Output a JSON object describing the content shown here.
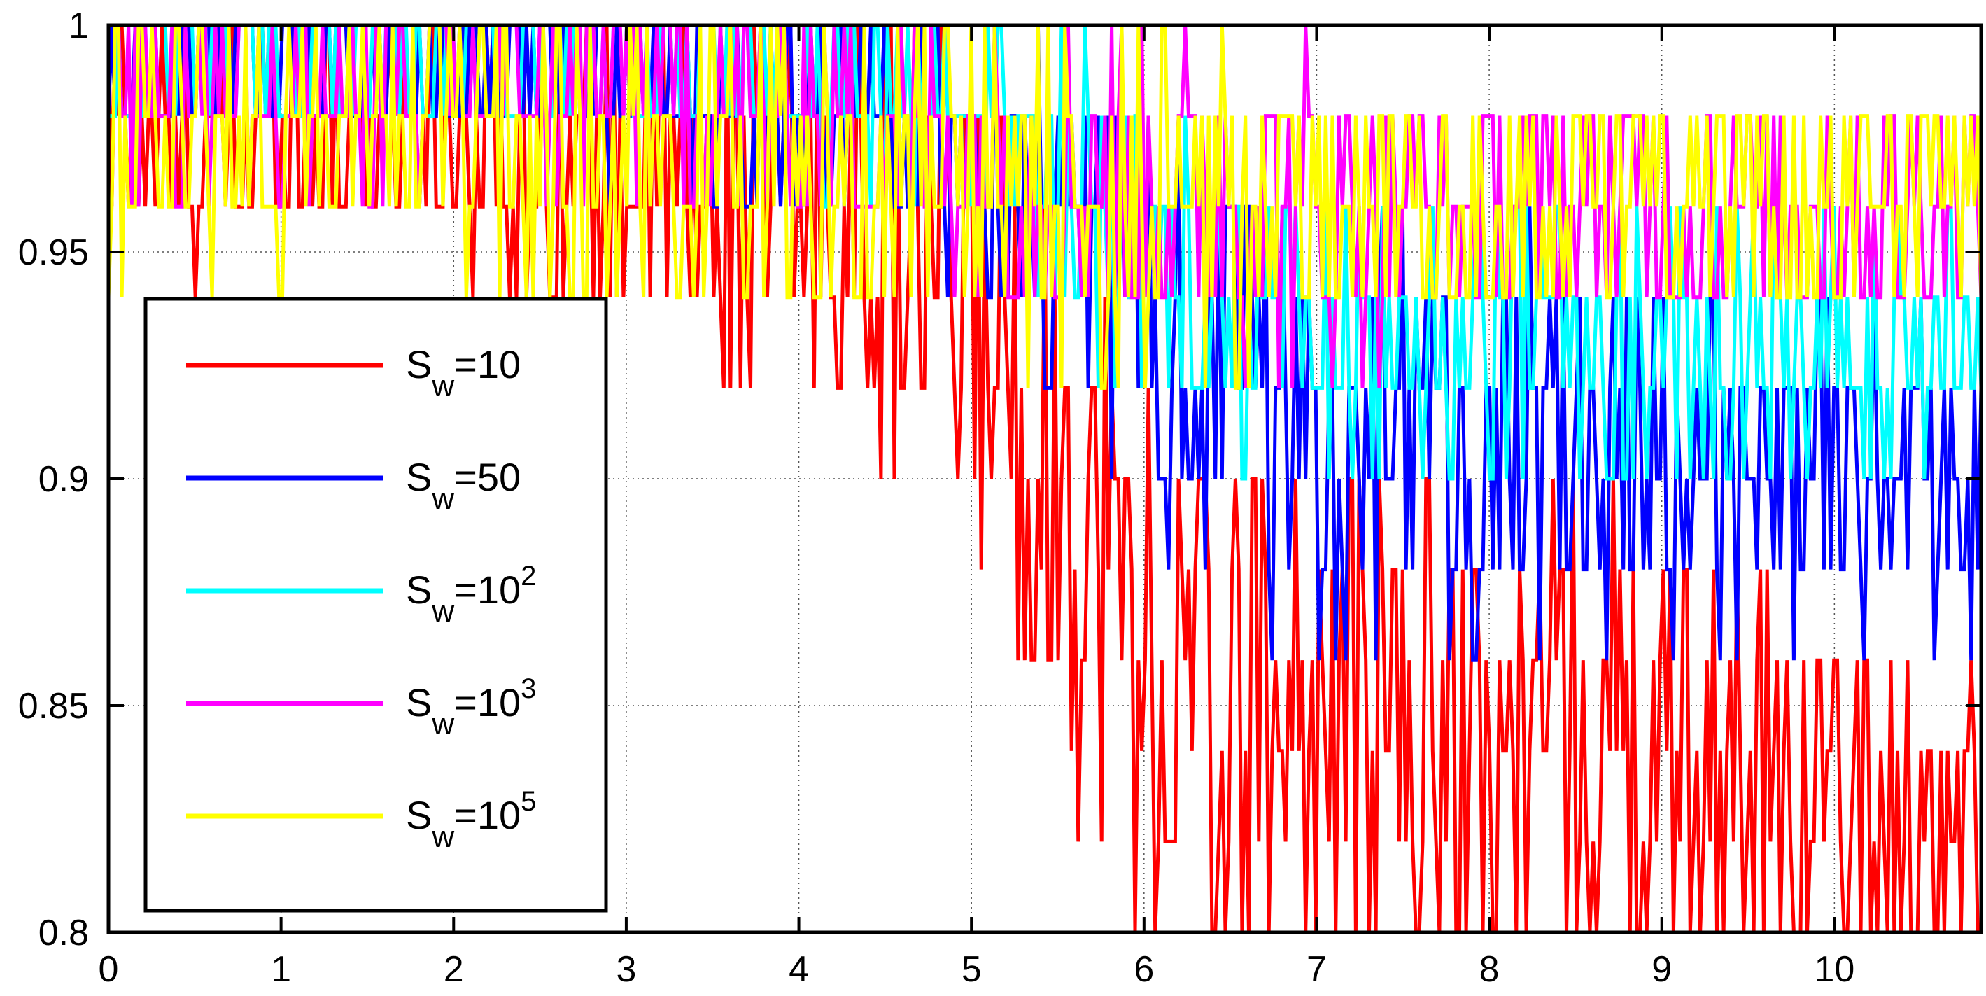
{
  "chart_data": {
    "type": "line",
    "title": "",
    "xlabel": "",
    "ylabel": "",
    "xlim": [
      0,
      10.85
    ],
    "ylim": [
      0.8,
      1.0
    ],
    "xticks": [
      0,
      1,
      2,
      3,
      4,
      5,
      6,
      7,
      8,
      9,
      10
    ],
    "xtick_labels": [
      "0",
      "1",
      "2",
      "3",
      "4",
      "5",
      "6",
      "7",
      "8",
      "9",
      "10"
    ],
    "yticks": [
      0.8,
      0.85,
      0.9,
      0.95,
      1.0
    ],
    "ytick_labels": [
      "0.8",
      "0.85",
      "0.9",
      "0.95",
      "1"
    ],
    "grid": true,
    "legend_position": "left",
    "series": [
      {
        "name": "Sw=10",
        "legend_base": "S",
        "legend_sub": "w",
        "legend_mid": "=10",
        "legend_sup": "",
        "color": "#ff0000",
        "x": [
          0.0,
          0.5,
          1.0,
          1.5,
          2.0,
          2.5,
          3.0,
          3.5,
          4.0,
          4.5,
          5.0,
          5.25,
          5.5,
          5.75,
          6.0,
          6.25,
          6.5,
          6.75,
          7.0,
          7.25,
          7.5,
          7.75,
          8.0,
          8.25,
          8.5,
          8.75,
          9.0,
          9.25,
          9.5,
          9.75,
          10.0,
          10.25,
          10.5,
          10.85
        ],
        "y": [
          0.98,
          0.97,
          0.98,
          0.98,
          0.98,
          0.97,
          0.97,
          0.96,
          0.96,
          0.95,
          0.94,
          0.92,
          0.9,
          0.88,
          0.86,
          0.85,
          0.84,
          0.85,
          0.84,
          0.85,
          0.84,
          0.85,
          0.83,
          0.85,
          0.84,
          0.84,
          0.83,
          0.84,
          0.84,
          0.83,
          0.83,
          0.83,
          0.82,
          0.82
        ],
        "amp": [
          0.015,
          0.02,
          0.02,
          0.02,
          0.02,
          0.025,
          0.025,
          0.03,
          0.03,
          0.035,
          0.04,
          0.04,
          0.045,
          0.05,
          0.05,
          0.05,
          0.045,
          0.045,
          0.045,
          0.045,
          0.045,
          0.04,
          0.04,
          0.04,
          0.04,
          0.04,
          0.035,
          0.035,
          0.035,
          0.035,
          0.03,
          0.03,
          0.03,
          0.03
        ]
      },
      {
        "name": "Sw=50",
        "legend_base": "S",
        "legend_sub": "w",
        "legend_mid": "=50",
        "legend_sup": "",
        "color": "#0000ff",
        "x": [
          0.0,
          1.0,
          2.0,
          3.0,
          4.0,
          5.0,
          5.5,
          6.0,
          6.5,
          7.0,
          7.5,
          8.0,
          8.5,
          9.0,
          9.5,
          10.0,
          10.5,
          10.85
        ],
        "y": [
          0.99,
          0.99,
          0.99,
          0.985,
          0.98,
          0.97,
          0.96,
          0.94,
          0.92,
          0.91,
          0.91,
          0.9,
          0.91,
          0.9,
          0.9,
          0.9,
          0.9,
          0.9
        ],
        "amp": [
          0.01,
          0.01,
          0.01,
          0.012,
          0.015,
          0.02,
          0.025,
          0.035,
          0.035,
          0.035,
          0.03,
          0.035,
          0.03,
          0.03,
          0.025,
          0.025,
          0.025,
          0.025
        ]
      },
      {
        "name": "Sw=10^2",
        "legend_base": "S",
        "legend_sub": "w",
        "legend_mid": "=10",
        "legend_sup": "2",
        "color": "#00ffff",
        "x": [
          0.0,
          1.0,
          2.0,
          3.0,
          4.0,
          5.0,
          5.5,
          6.0,
          6.5,
          7.0,
          7.5,
          8.0,
          8.5,
          9.0,
          9.5,
          10.0,
          10.5,
          10.85
        ],
        "y": [
          0.99,
          0.99,
          0.99,
          0.99,
          0.985,
          0.98,
          0.97,
          0.95,
          0.94,
          0.93,
          0.93,
          0.93,
          0.93,
          0.93,
          0.93,
          0.92,
          0.93,
          0.93
        ],
        "amp": [
          0.01,
          0.01,
          0.01,
          0.01,
          0.012,
          0.015,
          0.02,
          0.03,
          0.025,
          0.025,
          0.025,
          0.025,
          0.025,
          0.025,
          0.02,
          0.025,
          0.02,
          0.02
        ]
      },
      {
        "name": "Sw=10^3",
        "legend_base": "S",
        "legend_sub": "w",
        "legend_mid": "=10",
        "legend_sup": "3",
        "color": "#ff00ff",
        "x": [
          0.0,
          1.0,
          2.0,
          3.0,
          4.0,
          5.0,
          6.0,
          7.0,
          8.0,
          9.0,
          10.0,
          10.85
        ],
        "y": [
          0.985,
          0.985,
          0.985,
          0.985,
          0.98,
          0.975,
          0.965,
          0.96,
          0.96,
          0.96,
          0.96,
          0.96
        ],
        "amp": [
          0.015,
          0.015,
          0.015,
          0.015,
          0.015,
          0.02,
          0.025,
          0.025,
          0.02,
          0.02,
          0.02,
          0.02
        ]
      },
      {
        "name": "Sw=10^5",
        "legend_base": "S",
        "legend_sub": "w",
        "legend_mid": "=10",
        "legend_sup": "5",
        "color": "#ffff00",
        "x": [
          0.0,
          1.0,
          2.0,
          3.0,
          4.0,
          5.0,
          6.0,
          7.0,
          8.0,
          9.0,
          10.0,
          10.85
        ],
        "y": [
          0.975,
          0.975,
          0.975,
          0.97,
          0.97,
          0.965,
          0.955,
          0.96,
          0.96,
          0.96,
          0.96,
          0.96
        ],
        "amp": [
          0.02,
          0.02,
          0.02,
          0.025,
          0.025,
          0.025,
          0.03,
          0.02,
          0.02,
          0.02,
          0.02,
          0.02
        ]
      }
    ]
  }
}
